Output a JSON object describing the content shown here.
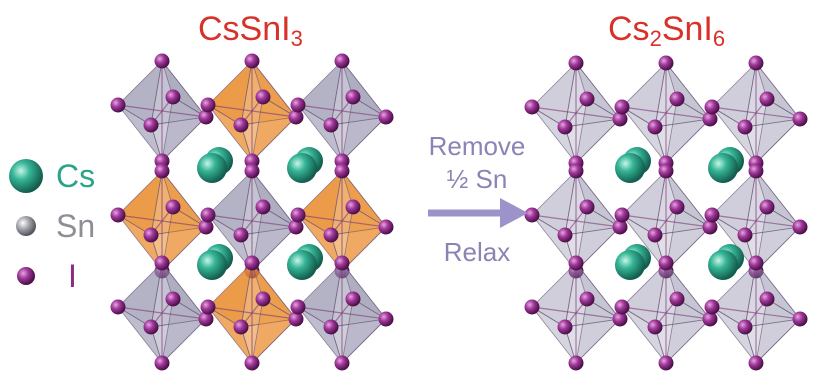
{
  "titles": {
    "left_main": "CsSnI",
    "left_sub": "3",
    "right_main_a": "Cs",
    "right_sub_a": "2",
    "right_main_b": "SnI",
    "right_sub_b": "6"
  },
  "legend": [
    {
      "label": "Cs",
      "color": "#2aa388",
      "icon": "cs-sphere-icon"
    },
    {
      "label": "Sn",
      "color": "#8e8e96",
      "icon": "sn-sphere-icon"
    },
    {
      "label": "I",
      "color": "#8b2a86",
      "icon": "i-sphere-icon"
    }
  ],
  "transformation": {
    "step1": "Remove",
    "step2": "½ Sn",
    "step3": "Relax"
  },
  "colors": {
    "title": "#d8312a",
    "arrow": "#9b93c9",
    "orange_octahedron": "#e98a2a",
    "gray_octahedron": "#8e8ca8",
    "cs": "#2aa388",
    "iodine": "#8b2a86"
  }
}
